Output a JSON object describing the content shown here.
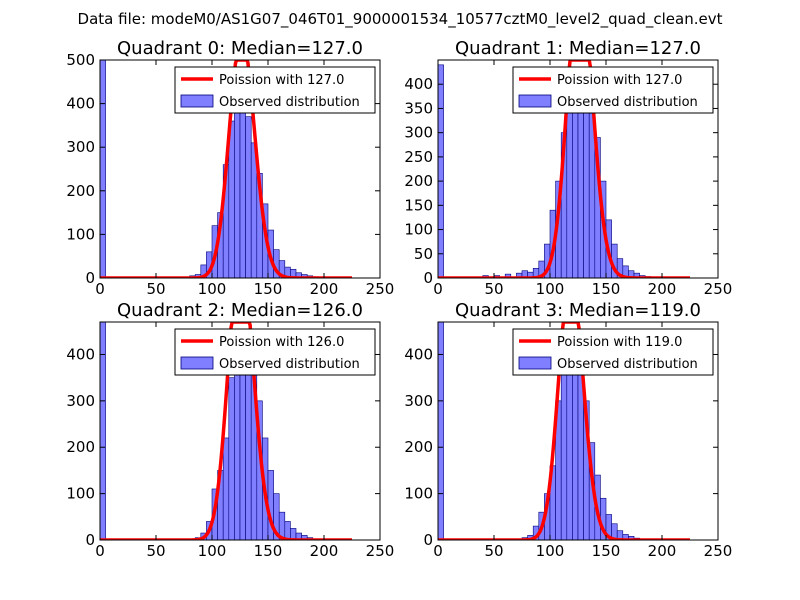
{
  "figure": {
    "suptitle": "Data file: modeM0/AS1G07_046T01_9000001534_10577cztM0_level2_quad_clean.evt"
  },
  "colors": {
    "bars_fill": "#7f7fff",
    "bars_edge": "#00007a",
    "poisson": "#ff0000",
    "axes": "#000000"
  },
  "chart_data": [
    {
      "type": "bar",
      "title": "Quadrant 0: Median=127.0",
      "median": 127.0,
      "xlim": [
        0,
        250
      ],
      "ylim": [
        0,
        500
      ],
      "xticks": [
        "0",
        "50",
        "100",
        "150",
        "200",
        "250"
      ],
      "yticks": [
        "0",
        "100",
        "200",
        "300",
        "400",
        "500"
      ],
      "bin_width": 5,
      "bins": [
        [
          0,
          500
        ],
        [
          80,
          5
        ],
        [
          85,
          8
        ],
        [
          90,
          30
        ],
        [
          95,
          60
        ],
        [
          100,
          120
        ],
        [
          105,
          150
        ],
        [
          110,
          260
        ],
        [
          115,
          360
        ],
        [
          120,
          380
        ],
        [
          125,
          390
        ],
        [
          130,
          370
        ],
        [
          135,
          310
        ],
        [
          140,
          240
        ],
        [
          145,
          170
        ],
        [
          150,
          110
        ],
        [
          155,
          65
        ],
        [
          160,
          40
        ],
        [
          165,
          25
        ],
        [
          170,
          20
        ],
        [
          175,
          12
        ],
        [
          180,
          8
        ],
        [
          185,
          5
        ],
        [
          190,
          3
        ],
        [
          195,
          2
        ]
      ],
      "legend": {
        "poisson": "Poission with 127.0",
        "observed": "Observed distribution"
      }
    },
    {
      "type": "bar",
      "title": "Quadrant 1: Median=127.0",
      "median": 127.0,
      "xlim": [
        0,
        250
      ],
      "ylim": [
        0,
        450
      ],
      "xticks": [
        "0",
        "50",
        "100",
        "150",
        "200",
        "250"
      ],
      "yticks": [
        "0",
        "50",
        "100",
        "150",
        "200",
        "250",
        "300",
        "350",
        "400"
      ],
      "bin_width": 5,
      "bins": [
        [
          0,
          440
        ],
        [
          40,
          5
        ],
        [
          50,
          5
        ],
        [
          60,
          8
        ],
        [
          70,
          10
        ],
        [
          75,
          15
        ],
        [
          80,
          12
        ],
        [
          85,
          20
        ],
        [
          90,
          35
        ],
        [
          95,
          70
        ],
        [
          100,
          140
        ],
        [
          105,
          200
        ],
        [
          110,
          300
        ],
        [
          115,
          380
        ],
        [
          120,
          390
        ],
        [
          125,
          400
        ],
        [
          130,
          380
        ],
        [
          135,
          340
        ],
        [
          140,
          290
        ],
        [
          145,
          200
        ],
        [
          150,
          120
        ],
        [
          155,
          70
        ],
        [
          160,
          40
        ],
        [
          165,
          25
        ],
        [
          170,
          15
        ],
        [
          175,
          10
        ],
        [
          180,
          5
        ],
        [
          185,
          3
        ]
      ],
      "legend": {
        "poisson": "Poission with 127.0",
        "observed": "Observed distribution"
      }
    },
    {
      "type": "bar",
      "title": "Quadrant 2: Median=126.0",
      "median": 126.0,
      "xlim": [
        0,
        250
      ],
      "ylim": [
        0,
        470
      ],
      "xticks": [
        "0",
        "50",
        "100",
        "150",
        "200",
        "250"
      ],
      "yticks": [
        "0",
        "100",
        "200",
        "300",
        "400"
      ],
      "bin_width": 5,
      "bins": [
        [
          0,
          470
        ],
        [
          85,
          5
        ],
        [
          90,
          15
        ],
        [
          95,
          40
        ],
        [
          100,
          110
        ],
        [
          105,
          150
        ],
        [
          110,
          220
        ],
        [
          115,
          350
        ],
        [
          120,
          400
        ],
        [
          125,
          440
        ],
        [
          130,
          420
        ],
        [
          135,
          380
        ],
        [
          140,
          300
        ],
        [
          145,
          220
        ],
        [
          150,
          150
        ],
        [
          155,
          100
        ],
        [
          160,
          60
        ],
        [
          165,
          40
        ],
        [
          170,
          25
        ],
        [
          175,
          15
        ],
        [
          180,
          10
        ],
        [
          185,
          5
        ]
      ],
      "legend": {
        "poisson": "Poission with 126.0",
        "observed": "Observed distribution"
      }
    },
    {
      "type": "bar",
      "title": "Quadrant 3: Median=119.0",
      "median": 119.0,
      "xlim": [
        0,
        250
      ],
      "ylim": [
        0,
        470
      ],
      "xticks": [
        "0",
        "50",
        "100",
        "150",
        "200",
        "250"
      ],
      "yticks": [
        "0",
        "100",
        "200",
        "300",
        "400"
      ],
      "bin_width": 5,
      "bins": [
        [
          0,
          470
        ],
        [
          75,
          5
        ],
        [
          80,
          10
        ],
        [
          85,
          30
        ],
        [
          90,
          60
        ],
        [
          95,
          100
        ],
        [
          100,
          160
        ],
        [
          105,
          300
        ],
        [
          110,
          370
        ],
        [
          115,
          430
        ],
        [
          120,
          420
        ],
        [
          125,
          380
        ],
        [
          130,
          300
        ],
        [
          135,
          210
        ],
        [
          140,
          140
        ],
        [
          145,
          90
        ],
        [
          150,
          55
        ],
        [
          155,
          35
        ],
        [
          160,
          20
        ],
        [
          165,
          12
        ],
        [
          170,
          8
        ],
        [
          175,
          4
        ]
      ],
      "legend": {
        "poisson": "Poission with 119.0",
        "observed": "Observed distribution"
      }
    }
  ]
}
